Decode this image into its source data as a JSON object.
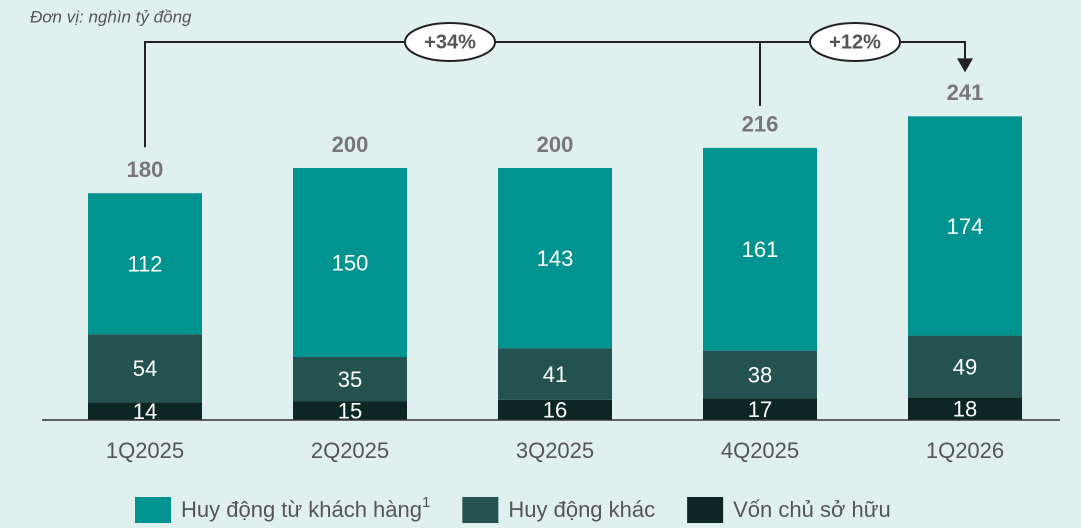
{
  "chart_data": {
    "type": "bar",
    "stacked": true,
    "subtitle": "Đơn vị: nghìn tỷ đồng",
    "categories": [
      "1Q2025",
      "2Q2025",
      "3Q2025",
      "4Q2025",
      "1Q2026"
    ],
    "series": [
      {
        "name": "Vốn chủ sở hữu",
        "color": "#0c2623",
        "values": [
          14,
          15,
          16,
          17,
          18
        ]
      },
      {
        "name": "Huy động khác",
        "color": "#235250",
        "values": [
          54,
          35,
          41,
          38,
          49
        ]
      },
      {
        "name": "Huy động từ khách hàng",
        "name_note": "1",
        "color": "#00938f",
        "values": [
          112,
          150,
          143,
          161,
          174
        ]
      }
    ],
    "totals": [
      180,
      200,
      200,
      216,
      241
    ],
    "annotations": [
      "+34%",
      "+12%"
    ]
  }
}
